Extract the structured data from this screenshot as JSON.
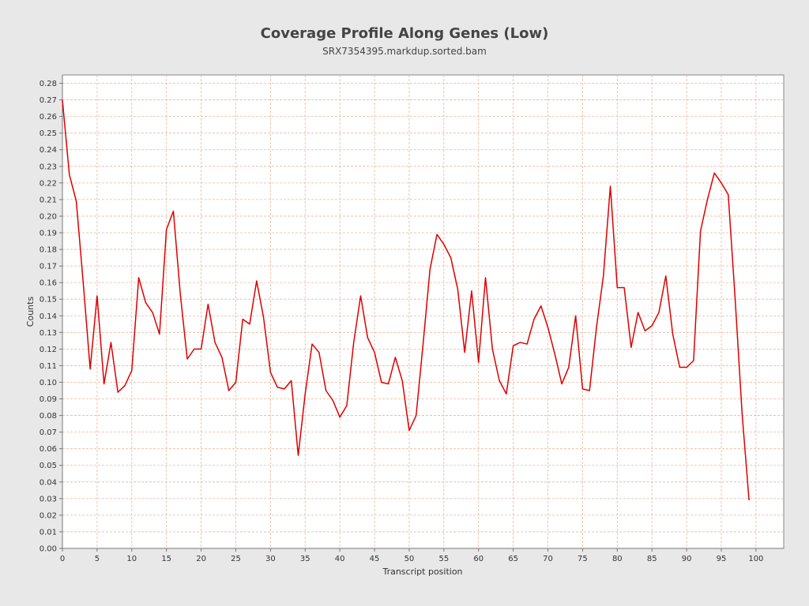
{
  "chart_data": {
    "type": "line",
    "title": "Coverage Profile Along Genes (Low)",
    "subtitle": "SRX7354395.markdup.sorted.bam",
    "xlabel": "Transcript position",
    "ylabel": "Counts",
    "xlim": [
      0,
      104
    ],
    "ylim": [
      0,
      0.285
    ],
    "x_ticks": [
      0,
      5,
      10,
      15,
      20,
      25,
      30,
      35,
      40,
      45,
      50,
      55,
      60,
      65,
      70,
      75,
      80,
      85,
      90,
      95,
      100
    ],
    "y_ticks": [
      0.0,
      0.01,
      0.02,
      0.03,
      0.04,
      0.05,
      0.06,
      0.07,
      0.08,
      0.09,
      0.1,
      0.11,
      0.12,
      0.13,
      0.14,
      0.15,
      0.16,
      0.17,
      0.18,
      0.19,
      0.2,
      0.21,
      0.22,
      0.23,
      0.24,
      0.25,
      0.26,
      0.27,
      0.28
    ],
    "grid": true,
    "colors": {
      "line": "#dd0000",
      "grid": "#e8b89a",
      "plot_background": "#ffffff",
      "page_background": "#e8e8e8"
    },
    "series": [
      {
        "x": [
          0,
          1,
          2,
          3,
          4,
          5,
          6,
          7,
          8,
          9,
          10,
          11,
          12,
          13,
          14,
          15,
          16,
          17,
          18,
          19,
          20,
          21,
          22,
          23,
          24,
          25,
          26,
          27,
          28,
          29,
          30,
          31,
          32,
          33,
          34,
          35,
          36,
          37,
          38,
          39,
          40,
          41,
          42,
          43,
          44,
          45,
          46,
          47,
          48,
          49,
          50,
          51,
          52,
          53,
          54,
          55,
          56,
          57,
          58,
          59,
          60,
          61,
          62,
          63,
          64,
          65,
          66,
          67,
          68,
          69,
          70,
          71,
          72,
          73,
          74,
          75,
          76,
          77,
          78,
          79,
          80,
          81,
          82,
          83,
          84,
          85,
          86,
          87,
          88,
          89,
          90,
          91,
          92,
          93,
          94,
          95,
          96,
          97,
          98,
          99
        ],
        "values": [
          0.27,
          0.225,
          0.209,
          0.16,
          0.108,
          0.152,
          0.099,
          0.124,
          0.094,
          0.098,
          0.107,
          0.163,
          0.148,
          0.142,
          0.129,
          0.192,
          0.203,
          0.153,
          0.114,
          0.12,
          0.12,
          0.147,
          0.124,
          0.115,
          0.095,
          0.1,
          0.138,
          0.135,
          0.161,
          0.139,
          0.106,
          0.097,
          0.096,
          0.101,
          0.056,
          0.093,
          0.123,
          0.118,
          0.095,
          0.089,
          0.079,
          0.086,
          0.124,
          0.152,
          0.127,
          0.118,
          0.1,
          0.099,
          0.115,
          0.101,
          0.071,
          0.08,
          0.123,
          0.168,
          0.189,
          0.183,
          0.175,
          0.156,
          0.118,
          0.155,
          0.112,
          0.163,
          0.12,
          0.101,
          0.093,
          0.122,
          0.124,
          0.123,
          0.138,
          0.146,
          0.133,
          0.117,
          0.099,
          0.109,
          0.14,
          0.096,
          0.095,
          0.133,
          0.164,
          0.218,
          0.157,
          0.157,
          0.121,
          0.142,
          0.131,
          0.134,
          0.142,
          0.164,
          0.129,
          0.109,
          0.109,
          0.113,
          0.191,
          0.21,
          0.226,
          0.22,
          0.213,
          0.15,
          0.081,
          0.029
        ]
      }
    ]
  }
}
